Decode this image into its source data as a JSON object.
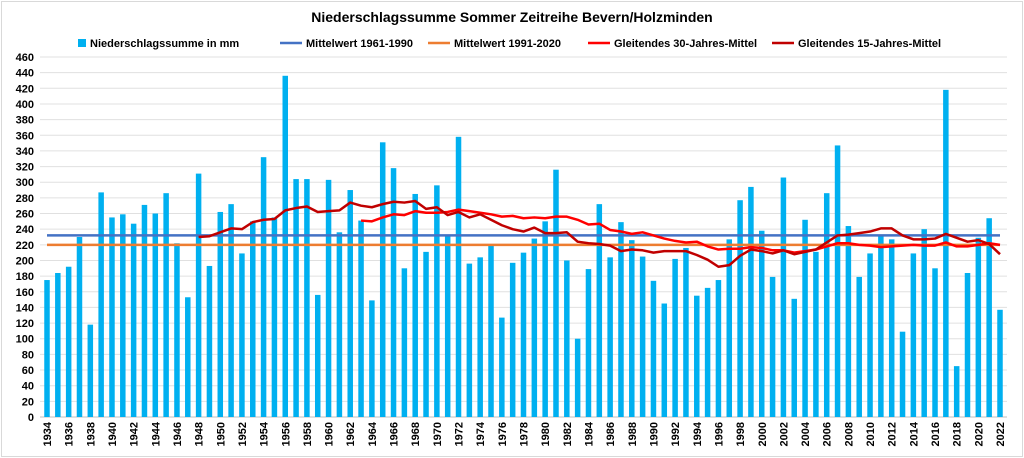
{
  "chart_data": {
    "type": "bar",
    "title": "Niederschlagssumme Sommer Zeitreihe Bevern/Holzminden",
    "xlabel": "",
    "ylabel": "",
    "ylim": [
      0,
      460
    ],
    "ytick_step": 20,
    "grid": true,
    "legend_position": "top",
    "x_start": 1934,
    "x_end": 2022,
    "x_tick_step": 2,
    "series": [
      {
        "name": "Niederschlagssumme in mm",
        "type": "bar",
        "color": "#00b0f0",
        "start": 1934,
        "values": [
          175,
          184,
          192,
          230,
          118,
          287,
          255,
          259,
          247,
          271,
          260,
          286,
          222,
          153,
          311,
          193,
          262,
          272,
          209,
          250,
          332,
          255,
          436,
          304,
          304,
          156,
          303,
          236,
          290,
          251,
          149,
          351,
          318,
          190,
          285,
          211,
          296,
          231,
          358,
          196,
          204,
          219,
          127,
          197,
          210,
          228,
          250,
          316,
          200,
          100,
          189,
          272,
          204,
          249,
          226,
          205,
          174,
          145,
          202,
          216,
          155,
          165,
          175,
          227,
          277,
          294,
          238,
          179,
          306,
          151,
          252,
          211,
          286,
          347,
          244,
          179,
          209,
          231,
          227,
          109,
          209,
          240,
          190,
          418,
          65,
          184,
          229,
          254,
          137
        ]
      },
      {
        "name": "Mittelwert 1961-1990",
        "type": "hline",
        "color": "#4472c4",
        "value": 232
      },
      {
        "name": "Mittelwert 1991-2020",
        "type": "hline",
        "color": "#ed7d31",
        "value": 220
      },
      {
        "name": "Gleitendes 30-Jahres-Mittel",
        "type": "line",
        "color": "#ff0000",
        "start": 1963,
        "values": [
          251,
          250,
          255,
          259,
          258,
          263,
          261,
          261,
          262,
          265,
          263,
          261,
          259,
          256,
          257,
          254,
          255,
          254,
          256,
          256,
          252,
          246,
          247,
          239,
          237,
          234,
          236,
          232,
          228,
          225,
          223,
          224,
          218,
          214,
          215,
          215,
          217,
          216,
          213,
          213,
          210,
          212,
          214,
          218,
          222,
          222,
          220,
          219,
          217,
          218,
          219,
          220,
          219,
          219,
          223,
          218,
          218,
          220,
          222,
          220
        ]
      },
      {
        "name": "Gleitendes 15-Jahres-Mittel",
        "type": "line",
        "color": "#c00000",
        "start": 1948,
        "values": [
          230,
          231,
          236,
          241,
          240,
          249,
          252,
          253,
          264,
          267,
          269,
          262,
          263,
          264,
          274,
          270,
          268,
          272,
          275,
          274,
          276,
          266,
          268,
          258,
          262,
          255,
          259,
          252,
          245,
          240,
          237,
          242,
          235,
          235,
          236,
          224,
          222,
          221,
          219,
          212,
          214,
          213,
          210,
          212,
          212,
          212,
          207,
          201,
          192,
          194,
          206,
          214,
          212,
          209,
          213,
          208,
          211,
          214,
          223,
          232,
          233,
          235,
          237,
          241,
          241,
          232,
          227,
          227,
          228,
          234,
          229,
          224,
          226,
          221,
          208
        ]
      }
    ]
  }
}
